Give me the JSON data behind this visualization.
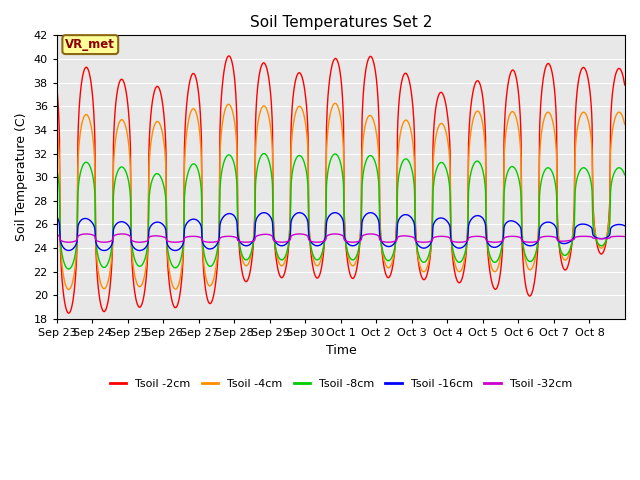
{
  "title": "Soil Temperatures Set 2",
  "xlabel": "Time",
  "ylabel": "Soil Temperature (C)",
  "ylim": [
    18,
    42
  ],
  "yticks": [
    18,
    20,
    22,
    24,
    26,
    28,
    30,
    32,
    34,
    36,
    38,
    40,
    42
  ],
  "x_labels": [
    "Sep 23",
    "Sep 24",
    "Sep 25",
    "Sep 26",
    "Sep 27",
    "Sep 28",
    "Sep 29",
    "Sep 30",
    "Oct 1",
    "Oct 2",
    "Oct 3",
    "Oct 4",
    "Oct 5",
    "Oct 6",
    "Oct 7",
    "Oct 8"
  ],
  "annotation_text": "VR_met",
  "annotation_color": "#8B0000",
  "annotation_bg": "#FFFF99",
  "annotation_border": "#8B6914",
  "series_colors": [
    "#FF0000",
    "#FF8C00",
    "#00CC00",
    "#0000FF",
    "#CC00CC"
  ],
  "series_labels": [
    "Tsoil -2cm",
    "Tsoil -4cm",
    "Tsoil -8cm",
    "Tsoil -16cm",
    "Tsoil -32cm"
  ],
  "bg_color": "#E8E8E8",
  "grid_color": "#FFFFFF",
  "n_days": 16,
  "points_per_day": 96,
  "tsoil2_max": [
    39.8,
    39.2,
    38.1,
    37.6,
    39.0,
    40.5,
    39.5,
    38.7,
    40.3,
    40.2,
    38.5,
    36.9,
    38.4,
    39.2,
    39.7,
    39.2
  ],
  "tsoil2_min": [
    18.5,
    18.5,
    18.9,
    19.2,
    18.5,
    21.0,
    21.5,
    21.5,
    21.4,
    21.5,
    21.5,
    21.0,
    21.2,
    19.2,
    21.5,
    23.5
  ],
  "tsoil4_max": [
    35.8,
    35.2,
    34.8,
    34.7,
    36.0,
    36.2,
    36.0,
    36.0,
    36.3,
    35.0,
    34.8,
    34.5,
    35.8,
    35.5,
    35.5,
    35.5
  ],
  "tsoil4_min": [
    20.5,
    20.5,
    20.7,
    20.8,
    20.0,
    22.5,
    22.5,
    22.5,
    22.5,
    22.5,
    22.0,
    22.0,
    22.0,
    22.0,
    22.5,
    24.0
  ],
  "tsoil8_max": [
    31.6,
    31.2,
    30.8,
    30.2,
    31.3,
    32.0,
    32.0,
    31.8,
    32.0,
    31.8,
    31.5,
    31.2,
    31.4,
    30.8,
    30.8,
    30.8
  ],
  "tsoil8_min": [
    22.2,
    22.3,
    22.5,
    22.4,
    22.2,
    23.0,
    23.0,
    23.0,
    23.0,
    23.0,
    22.8,
    22.8,
    22.8,
    22.8,
    23.0,
    24.2
  ],
  "tsoil16_max": [
    27.0,
    26.4,
    26.2,
    26.2,
    26.5,
    27.0,
    27.0,
    27.0,
    27.0,
    27.0,
    26.8,
    26.5,
    26.8,
    26.2,
    26.2,
    26.0
  ],
  "tsoil16_min": [
    23.8,
    23.8,
    23.8,
    23.8,
    23.8,
    24.2,
    24.2,
    24.2,
    24.2,
    24.2,
    24.0,
    24.0,
    24.0,
    24.2,
    24.2,
    24.8
  ],
  "tsoil32_max": [
    25.2,
    25.2,
    25.2,
    25.0,
    25.0,
    25.0,
    25.2,
    25.2,
    25.2,
    25.2,
    25.0,
    25.0,
    25.0,
    25.0,
    25.0,
    25.0
  ],
  "tsoil32_min": [
    24.5,
    24.5,
    24.5,
    24.5,
    24.5,
    24.5,
    24.5,
    24.5,
    24.5,
    24.5,
    24.5,
    24.5,
    24.5,
    24.5,
    24.5,
    24.8
  ]
}
